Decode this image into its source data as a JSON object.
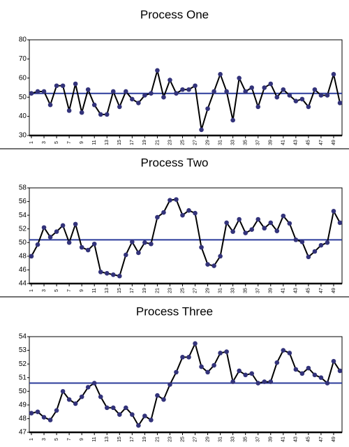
{
  "chart_data": [
    {
      "type": "line",
      "title": "Process One",
      "x": [
        1,
        2,
        3,
        4,
        5,
        6,
        7,
        8,
        9,
        10,
        11,
        12,
        13,
        14,
        15,
        16,
        17,
        18,
        19,
        20,
        21,
        22,
        23,
        24,
        25,
        26,
        27,
        28,
        29,
        30,
        31,
        32,
        33,
        34,
        35,
        36,
        37,
        38,
        39,
        40,
        41,
        42,
        43,
        44,
        45,
        46,
        47,
        48,
        49,
        50
      ],
      "values": [
        52,
        53,
        53,
        46,
        56,
        56,
        43,
        57,
        42,
        54,
        46,
        41,
        41,
        53,
        45,
        53,
        49,
        47,
        51,
        52,
        64,
        50,
        59,
        52,
        54,
        54,
        56,
        33,
        44,
        53,
        62,
        53,
        38,
        60,
        53,
        55,
        45,
        55,
        57,
        50,
        54,
        51,
        48,
        49,
        45,
        54,
        51,
        51,
        62,
        47
      ],
      "color": "#000000",
      "marker_color": "#33337a",
      "reference_line": {
        "value": 52,
        "color": "#2b3b9b"
      },
      "xlim": [
        1,
        50
      ],
      "xticks": [
        1,
        3,
        5,
        7,
        9,
        11,
        13,
        15,
        17,
        19,
        21,
        23,
        25,
        27,
        29,
        31,
        33,
        35,
        37,
        39,
        41,
        43,
        45,
        47,
        49
      ],
      "ylim": [
        30,
        80
      ],
      "yticks": [
        30,
        40,
        50,
        60,
        70,
        80
      ]
    },
    {
      "type": "line",
      "title": "Process Two",
      "x": [
        1,
        2,
        3,
        4,
        5,
        6,
        7,
        8,
        9,
        10,
        11,
        12,
        13,
        14,
        15,
        16,
        17,
        18,
        19,
        20,
        21,
        22,
        23,
        24,
        25,
        26,
        27,
        28,
        29,
        30,
        31,
        32,
        33,
        34,
        35,
        36,
        37,
        38,
        39,
        40,
        41,
        42,
        43,
        44,
        45,
        46,
        47,
        48,
        49,
        50
      ],
      "values": [
        48,
        49.7,
        52.2,
        50.8,
        51.6,
        52.5,
        50,
        52.7,
        49.3,
        48.9,
        49.8,
        45.7,
        45.5,
        45.3,
        45.1,
        48.2,
        50.1,
        48.5,
        50,
        49.8,
        53.7,
        54.4,
        56.2,
        56.3,
        54,
        54.7,
        54.3,
        49.3,
        46.8,
        46.6,
        48,
        52.9,
        51.6,
        53.4,
        51.4,
        51.9,
        53.4,
        52.1,
        52.9,
        51.7,
        53.9,
        52.8,
        50.4,
        50.1,
        47.9,
        48.7,
        49.6,
        50,
        54.6,
        52.9
      ],
      "color": "#000000",
      "marker_color": "#33337a",
      "reference_line": {
        "value": 50.4,
        "color": "#2b3b9b"
      },
      "xlim": [
        1,
        50
      ],
      "xticks": [
        1,
        3,
        5,
        7,
        9,
        11,
        13,
        15,
        17,
        19,
        21,
        23,
        25,
        27,
        29,
        31,
        33,
        35,
        37,
        39,
        41,
        43,
        45,
        47,
        49
      ],
      "ylim": [
        44,
        58
      ],
      "yticks": [
        44,
        46,
        48,
        50,
        52,
        54,
        56,
        58
      ]
    },
    {
      "type": "line",
      "title": "Process Three",
      "x": [
        1,
        2,
        3,
        4,
        5,
        6,
        7,
        8,
        9,
        10,
        11,
        12,
        13,
        14,
        15,
        16,
        17,
        18,
        19,
        20,
        21,
        22,
        23,
        24,
        25,
        26,
        27,
        28,
        29,
        30,
        31,
        32,
        33,
        34,
        35,
        36,
        37,
        38,
        39,
        40,
        41,
        42,
        43,
        44,
        45,
        46,
        47,
        48,
        49,
        50
      ],
      "values": [
        48.4,
        48.5,
        48.1,
        47.9,
        48.6,
        50,
        49.4,
        49.1,
        49.6,
        50.3,
        50.6,
        49.6,
        48.8,
        48.8,
        48.3,
        48.8,
        48.3,
        47.5,
        48.2,
        47.9,
        49.7,
        49.4,
        50.5,
        51.4,
        52.5,
        52.5,
        53.5,
        51.8,
        51.4,
        51.9,
        52.8,
        52.9,
        50.7,
        51.5,
        51.2,
        51.3,
        50.6,
        50.7,
        50.7,
        52.1,
        53,
        52.8,
        51.6,
        51.3,
        51.7,
        51.2,
        51,
        50.6,
        52.2,
        51.5
      ],
      "color": "#000000",
      "marker_color": "#33337a",
      "reference_line": {
        "value": 50.6,
        "color": "#2b3b9b"
      },
      "xlim": [
        1,
        50
      ],
      "xticks": [
        1,
        3,
        5,
        7,
        9,
        11,
        13,
        15,
        17,
        19,
        21,
        23,
        25,
        27,
        29,
        31,
        33,
        35,
        37,
        39,
        41,
        43,
        45,
        47,
        49
      ],
      "ylim": [
        47,
        54
      ],
      "yticks": [
        47,
        48,
        49,
        50,
        51,
        52,
        53,
        54
      ]
    }
  ]
}
